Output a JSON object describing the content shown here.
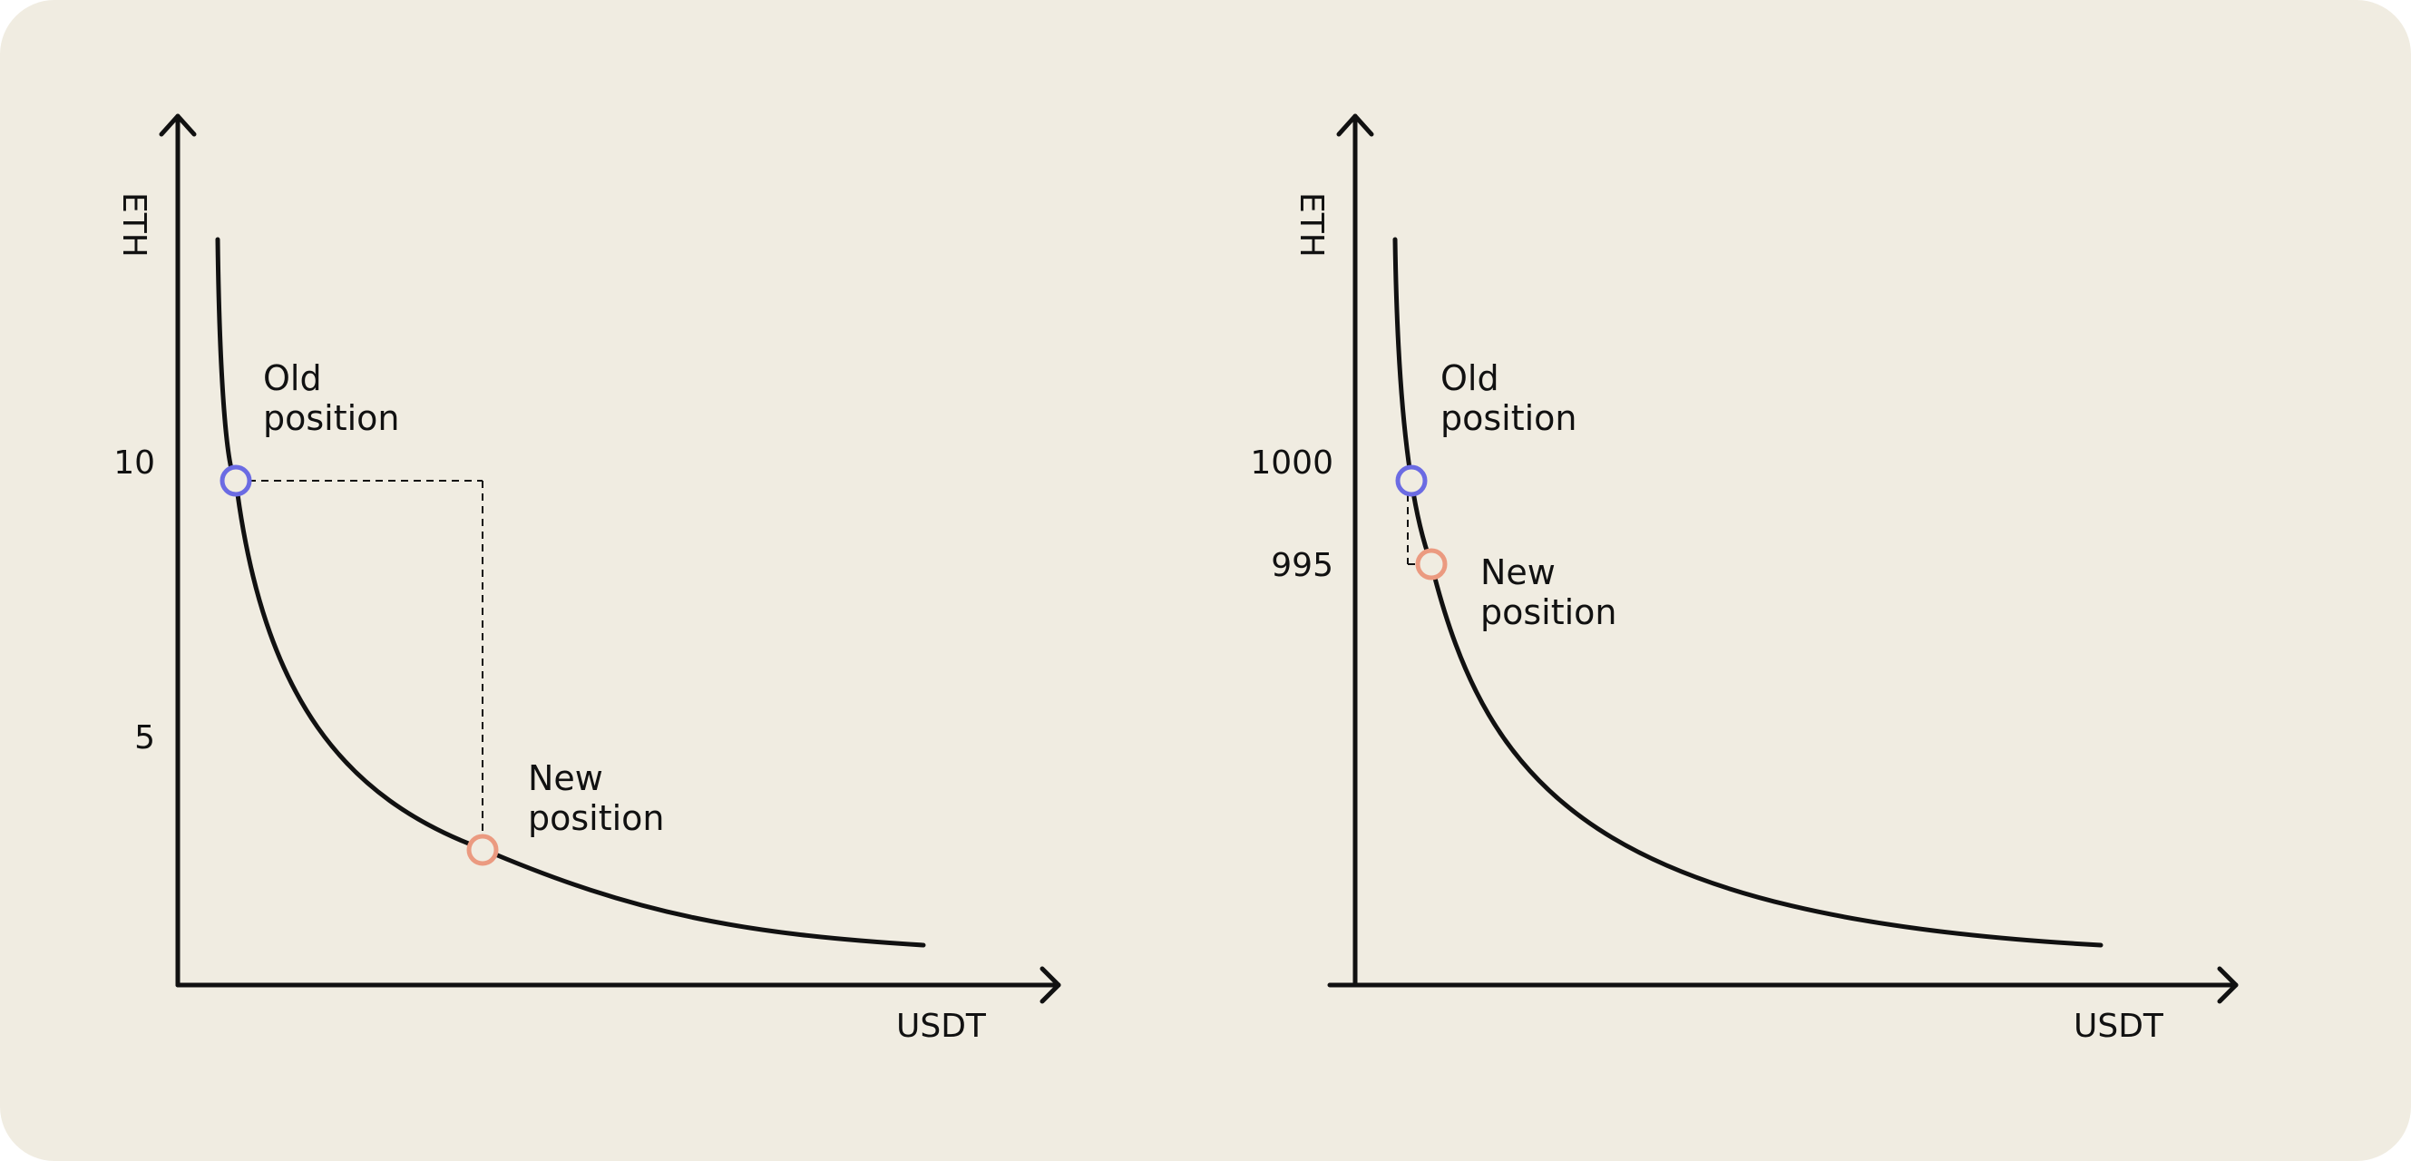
{
  "colors": {
    "background": "#F0ECE1",
    "stroke": "#111111",
    "old_point": "#6B6BE3",
    "new_point": "#EB9A80"
  },
  "chart_data": [
    {
      "type": "line",
      "curve": "constant-product x*y=k",
      "xlabel": "USDT",
      "ylabel": "ETH",
      "yticks": [
        "10",
        "5"
      ],
      "points": {
        "old": {
          "label_line1": "Old",
          "label_line2": "position",
          "eth": 10
        },
        "new": {
          "label_line1": "New",
          "label_line2": "position"
        }
      }
    },
    {
      "type": "line",
      "curve": "constant-product x*y=k",
      "xlabel": "USDT",
      "ylabel": "ETH",
      "yticks": [
        "1000",
        "995"
      ],
      "points": {
        "old": {
          "label_line1": "Old",
          "label_line2": "position",
          "eth": 1000
        },
        "new": {
          "label_line1": "New",
          "label_line2": "position",
          "eth": 995
        }
      }
    }
  ]
}
